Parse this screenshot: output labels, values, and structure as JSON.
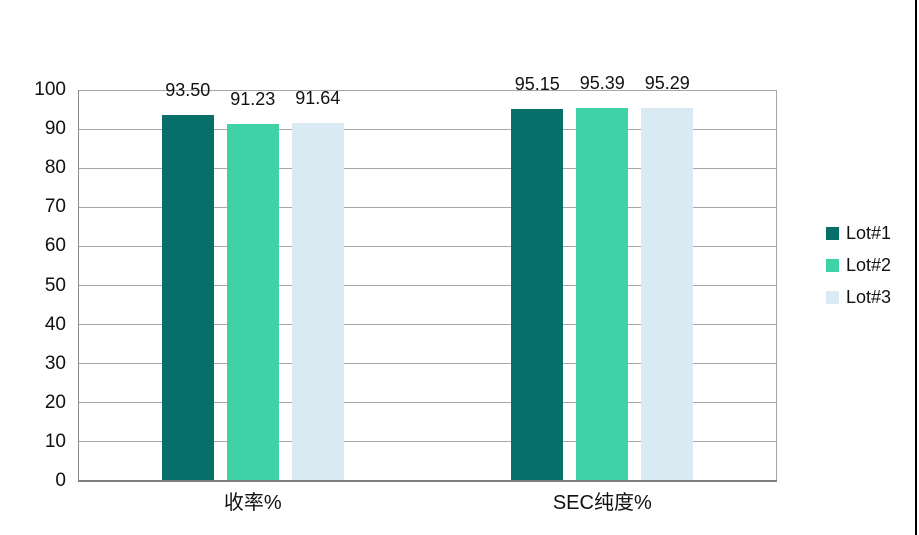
{
  "chart_data": {
    "type": "bar",
    "title": "",
    "categories": [
      "收率%",
      "SEC纯度%"
    ],
    "series": [
      {
        "name": "Lot#1",
        "color": "#066F69",
        "values": [
          93.5,
          95.15
        ],
        "labels": [
          "93.50",
          "95.15"
        ]
      },
      {
        "name": "Lot#2",
        "color": "#3ED2A6",
        "values": [
          91.23,
          95.39
        ],
        "labels": [
          "91.23",
          "95.39"
        ]
      },
      {
        "name": "Lot#3",
        "color": "#D9EAF2",
        "values": [
          91.64,
          95.29
        ],
        "labels": [
          "91.64",
          "95.29"
        ]
      }
    ],
    "ylim": [
      0,
      100
    ],
    "ytick_step": 10,
    "yticks": [
      "0",
      "10",
      "20",
      "30",
      "40",
      "50",
      "60",
      "70",
      "80",
      "90",
      "100"
    ],
    "grid": true,
    "gridline_color": "#A6A6A6",
    "axis_color": "#8A8A8A",
    "bottom_axis_color": "#7F7F7F",
    "legend_position": "right",
    "edge_line_color": "#000000"
  }
}
